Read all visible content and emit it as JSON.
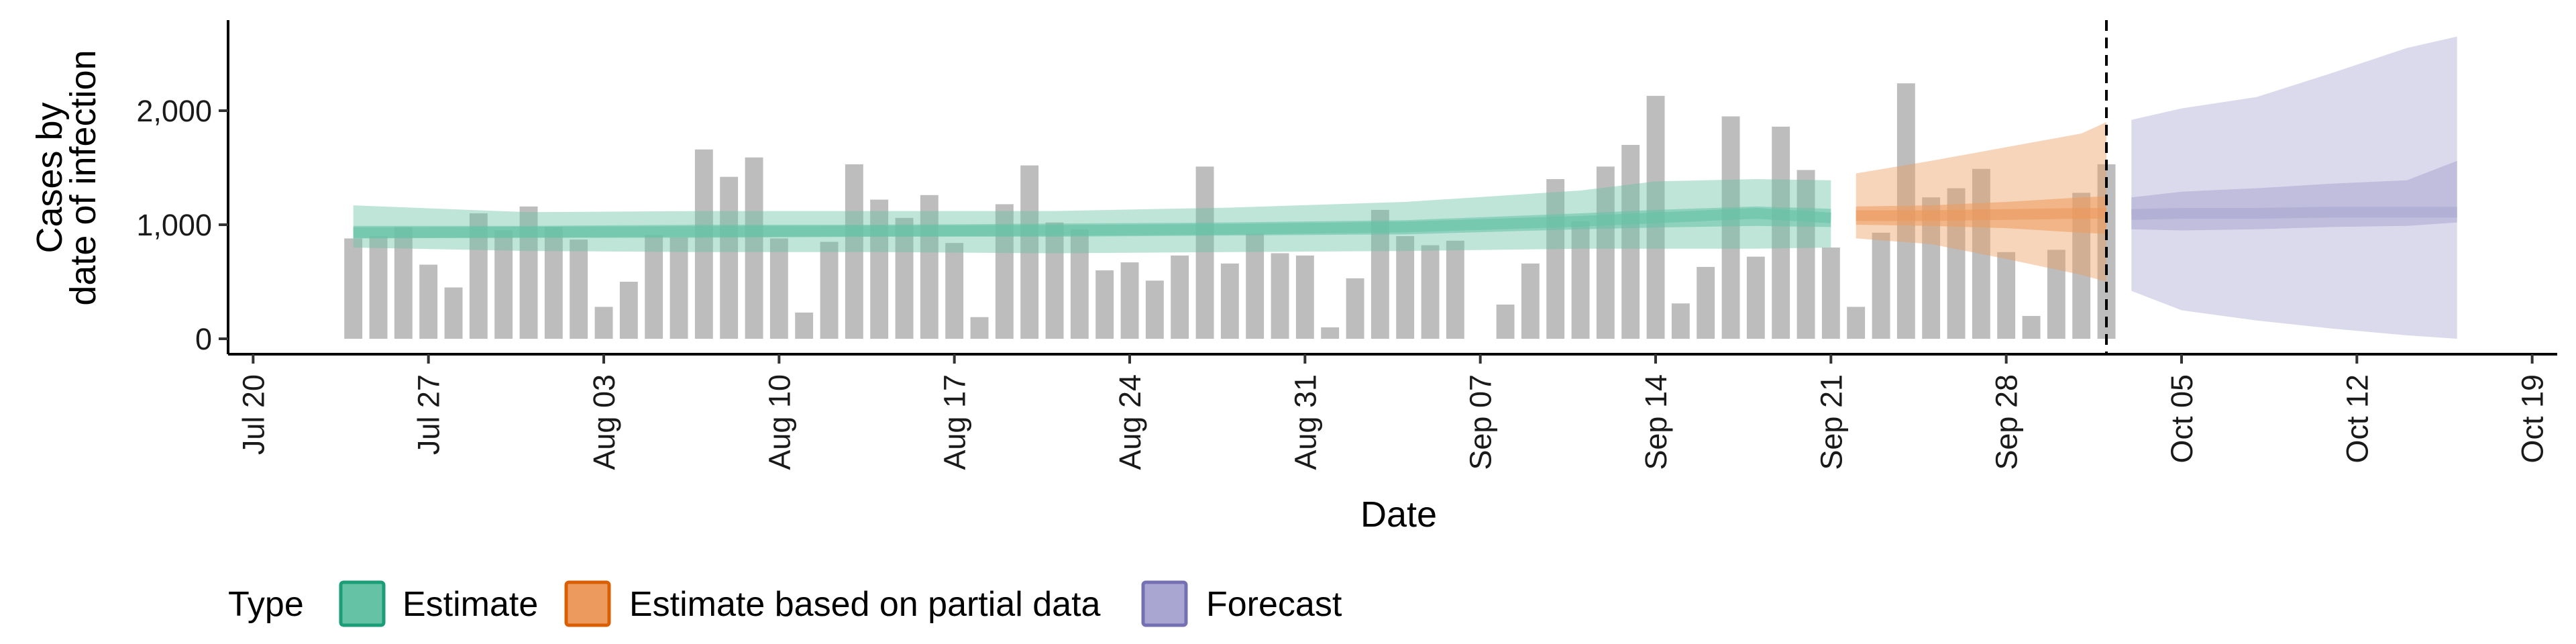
{
  "chart_data": {
    "type": "bar",
    "xlabel": "Date",
    "ylabel_lines": [
      "Cases by",
      "date of infection"
    ],
    "ylim": [
      0,
      2800
    ],
    "y_ticks": [
      0,
      1000,
      2000
    ],
    "y_tick_labels": [
      "0",
      "1,000",
      "2,000"
    ],
    "x_range": [
      "2020-07-19",
      "2020-10-20"
    ],
    "x_ticks": [
      "2020-07-20",
      "2020-07-27",
      "2020-08-03",
      "2020-08-10",
      "2020-08-17",
      "2020-08-24",
      "2020-08-31",
      "2020-09-07",
      "2020-09-14",
      "2020-09-21",
      "2020-09-28",
      "2020-10-05",
      "2020-10-12",
      "2020-10-19"
    ],
    "x_tick_labels": [
      "Jul 20",
      "Jul 27",
      "Aug 03",
      "Aug 10",
      "Aug 17",
      "Aug 24",
      "Aug 31",
      "Sep 07",
      "Sep 14",
      "Sep 21",
      "Sep 28",
      "Oct 05",
      "Oct 12",
      "Oct 19"
    ],
    "forecast_date": "2020-10-02",
    "bars": {
      "start_date": "2020-07-24",
      "values": [
        880,
        900,
        980,
        650,
        450,
        1100,
        950,
        1160,
        980,
        870,
        280,
        500,
        910,
        890,
        1660,
        1420,
        1590,
        880,
        230,
        850,
        1530,
        1220,
        1060,
        1260,
        840,
        190,
        1180,
        1520,
        1020,
        960,
        600,
        670,
        510,
        730,
        1510,
        660,
        920,
        750,
        730,
        100,
        530,
        1130,
        900,
        820,
        860,
        0,
        300,
        660,
        1400,
        1030,
        1510,
        1700,
        2130,
        310,
        630,
        1950,
        720,
        1860,
        1480,
        800,
        280,
        930,
        2240,
        1240,
        1320,
        1490,
        760,
        200,
        780,
        1280,
        1530
      ]
    },
    "series": [
      {
        "name": "Estimate",
        "color": "#1b9e77",
        "fill": "#66c2a5",
        "dates": [
          "2020-07-24",
          "2020-07-31",
          "2020-08-07",
          "2020-08-14",
          "2020-08-21",
          "2020-08-28",
          "2020-09-04",
          "2020-09-11",
          "2020-09-14",
          "2020-09-18",
          "2020-09-21"
        ],
        "median": [
          930,
          935,
          940,
          945,
          950,
          960,
          980,
          1030,
          1060,
          1100,
          1060
        ],
        "lower50": [
          880,
          885,
          885,
          895,
          895,
          905,
          915,
          960,
          975,
          990,
          980
        ],
        "upper50": [
          990,
          990,
          1000,
          1000,
          1010,
          1020,
          1040,
          1100,
          1130,
          1160,
          1140
        ],
        "lower90": [
          800,
          770,
          760,
          760,
          750,
          760,
          770,
          790,
          790,
          790,
          800
        ],
        "upper90": [
          1170,
          1110,
          1120,
          1120,
          1120,
          1150,
          1200,
          1300,
          1380,
          1400,
          1390
        ]
      },
      {
        "name": "Estimate based on partial data",
        "color": "#d95f02",
        "fill": "#ec9a5d",
        "dates": [
          "2020-09-22",
          "2020-09-25",
          "2020-09-28",
          "2020-10-01",
          "2020-10-02"
        ],
        "median": [
          1080,
          1080,
          1090,
          1100,
          1100
        ],
        "lower50": [
          1000,
          990,
          970,
          930,
          920
        ],
        "upper50": [
          1160,
          1170,
          1200,
          1240,
          1250
        ],
        "lower90": [
          880,
          830,
          700,
          560,
          500
        ],
        "upper90": [
          1450,
          1560,
          1680,
          1800,
          1900
        ]
      },
      {
        "name": "Forecast",
        "color": "#7570b3",
        "fill": "#a9a6d1",
        "dates": [
          "2020-10-03",
          "2020-10-05",
          "2020-10-08",
          "2020-10-11",
          "2020-10-14",
          "2020-10-16"
        ],
        "median": [
          1090,
          1100,
          1100,
          1110,
          1110,
          1110
        ],
        "lower50": [
          960,
          950,
          960,
          980,
          990,
          1020
        ],
        "upper50": [
          1240,
          1290,
          1320,
          1360,
          1390,
          1560
        ],
        "lower90": [
          420,
          250,
          160,
          90,
          30,
          0
        ],
        "upper90": [
          1920,
          2020,
          2120,
          2330,
          2550,
          2650
        ]
      }
    ],
    "legend": {
      "title": "Type",
      "position": "bottom",
      "entries": [
        "Estimate",
        "Estimate based on partial data",
        "Forecast"
      ]
    },
    "grid": false
  }
}
